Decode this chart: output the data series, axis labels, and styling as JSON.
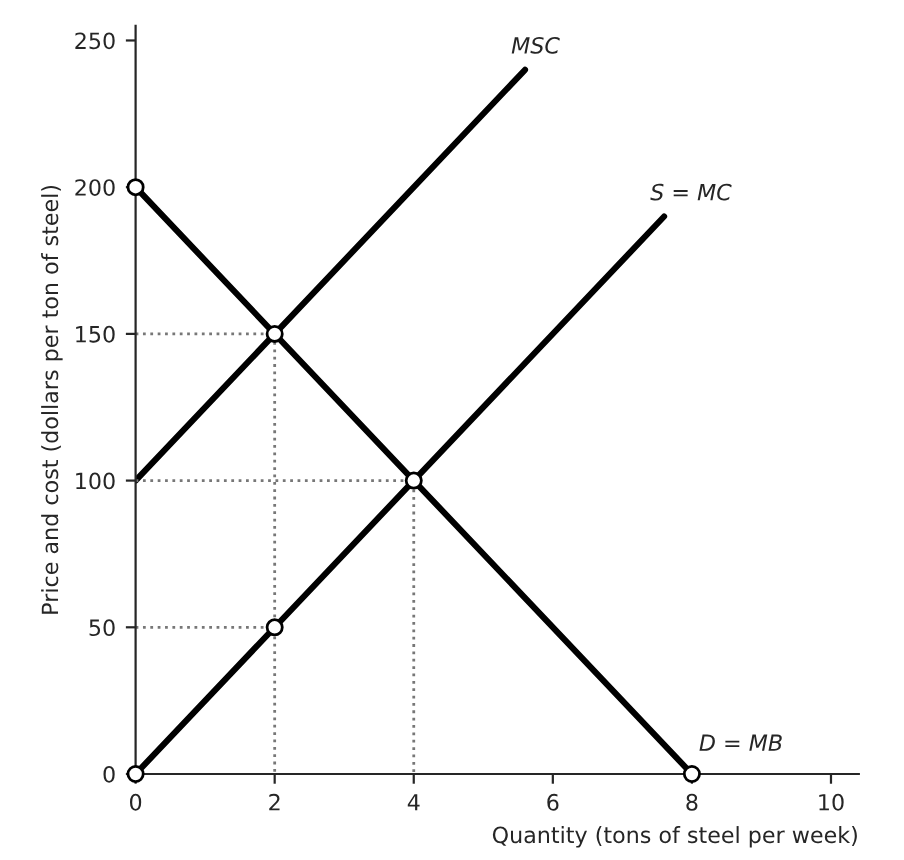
{
  "chart_data": {
    "type": "line",
    "xlabel": "Quantity (tons of steel per week)",
    "ylabel": "Price and cost (dollars per ton of steel)",
    "xlim": [
      0,
      10.4
    ],
    "ylim": [
      0,
      255
    ],
    "xticks": [
      0,
      2,
      4,
      6,
      8,
      10
    ],
    "yticks": [
      0,
      50,
      100,
      150,
      200,
      250
    ],
    "grid": false,
    "legend": false,
    "series": [
      {
        "name": "MSC",
        "color": "#000000",
        "x": [
          0,
          5.6
        ],
        "values": [
          100,
          240
        ],
        "line_style": "solid",
        "marker": "none"
      },
      {
        "name": "S = MC",
        "color": "#000000",
        "x": [
          0,
          7.6
        ],
        "values": [
          0,
          190
        ],
        "line_style": "solid",
        "marker": "none"
      },
      {
        "name": "D = MB",
        "color": "#000000",
        "x": [
          0,
          8
        ],
        "values": [
          200,
          0
        ],
        "line_style": "solid",
        "marker": "none"
      },
      {
        "color": "#777777",
        "x": [
          0,
          2,
          2
        ],
        "values": [
          150,
          150,
          0
        ],
        "line_style": "dotted",
        "marker": "none"
      },
      {
        "color": "#777777",
        "x": [
          0,
          4,
          4
        ],
        "values": [
          100,
          100,
          0
        ],
        "line_style": "dotted",
        "marker": "none"
      },
      {
        "color": "#777777",
        "x": [
          0,
          2
        ],
        "values": [
          50,
          50
        ],
        "line_style": "dotted",
        "marker": "none"
      },
      {
        "type": "scatter",
        "color": "#000000",
        "x": [
          0,
          2,
          4,
          2,
          0,
          8
        ],
        "values": [
          200,
          150,
          100,
          50,
          0,
          0
        ],
        "marker": "circle"
      }
    ]
  }
}
